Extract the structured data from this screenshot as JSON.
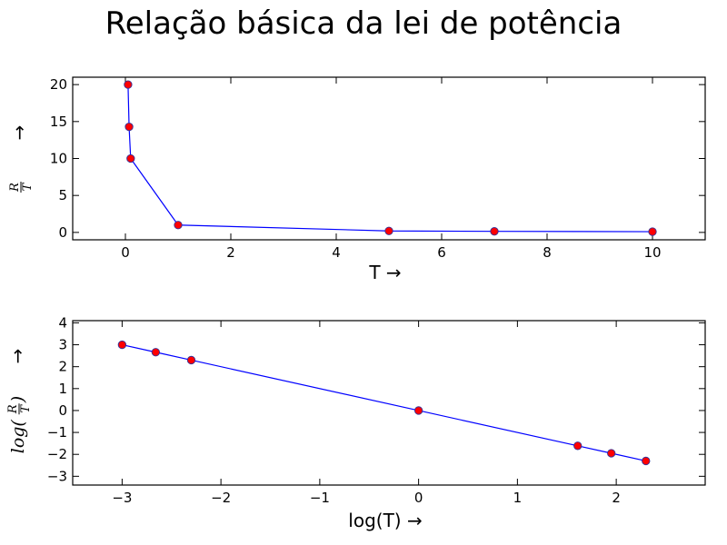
{
  "figure": {
    "title": "Relação básica da lei de potência"
  },
  "chart_data": [
    {
      "type": "line",
      "markers": true,
      "line_color": "#0000ff",
      "marker_color": "#ff0000",
      "marker_edge": "#333399",
      "x": [
        0.05,
        0.07,
        0.1,
        1,
        5,
        7,
        10
      ],
      "y": [
        20,
        14.29,
        10,
        1,
        0.2,
        0.143,
        0.1
      ],
      "xlim": [
        -1,
        11
      ],
      "ylim": [
        -1,
        21
      ],
      "xticks": [
        0,
        2,
        4,
        6,
        8,
        10
      ],
      "yticks": [
        0,
        5,
        10,
        15,
        20
      ],
      "xlabel": "T →",
      "ylabel": "R/T →",
      "ylabel_parts": {
        "num": "R",
        "den": "T",
        "arrow": "→"
      },
      "grid": false
    },
    {
      "type": "line",
      "markers": true,
      "line_color": "#0000ff",
      "marker_color": "#ff0000",
      "marker_edge": "#333399",
      "x": [
        -3.0,
        -2.66,
        -2.3,
        0.0,
        1.61,
        1.95,
        2.3
      ],
      "y": [
        3.0,
        2.66,
        2.3,
        0.0,
        -1.61,
        -1.95,
        -2.3
      ],
      "xlim": [
        -3.5,
        2.9
      ],
      "ylim": [
        -3.4,
        4.1
      ],
      "xticks": [
        -3,
        -2,
        -1,
        0,
        1,
        2
      ],
      "yticks": [
        -3,
        -2,
        -1,
        0,
        1,
        2,
        3,
        4
      ],
      "xlabel": "log(T) →",
      "ylabel": "log(R/T) →",
      "ylabel_parts": {
        "prefix": "log(",
        "num": "R",
        "den": "T",
        "suffix": ")",
        "arrow": "→"
      },
      "grid": false
    }
  ]
}
